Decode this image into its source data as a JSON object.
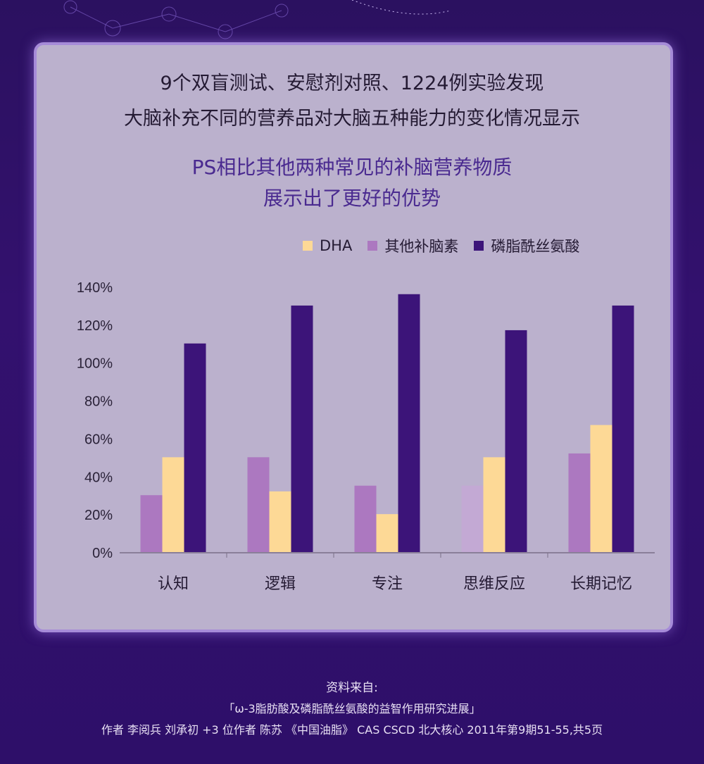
{
  "title_lines": [
    "9个双盲测试、安慰剂对照、1224例实验发现",
    "大脑补充不同的营养品对大脑五种能力的变化情况显示"
  ],
  "subtitle_lines": [
    "PS相比其他两种常见的补脑营养物质",
    "展示出了更好的优势"
  ],
  "chart_data": {
    "type": "bar",
    "categories": [
      "认知",
      "逻辑",
      "专注",
      "思维反应",
      "长期记忆"
    ],
    "series": [
      {
        "name": "其他补脑素",
        "color": "#ac78c0",
        "values": [
          30,
          50,
          35,
          35,
          52
        ]
      },
      {
        "name": "DHA",
        "color": "#fdd996",
        "values": [
          50,
          32,
          20,
          50,
          67
        ]
      },
      {
        "name": "磷脂酰丝氨酸",
        "color": "#3c1479",
        "values": [
          110,
          130,
          136,
          117,
          130
        ]
      }
    ],
    "legend_order": [
      "DHA",
      "其他补脑素",
      "磷脂酰丝氨酸"
    ],
    "legend_position": "top-right",
    "yticks": [
      "0%",
      "20%",
      "40%",
      "60%",
      "80%",
      "100%",
      "120%",
      "140%"
    ],
    "ylim": [
      0,
      140
    ],
    "grid": false
  },
  "footer": {
    "source_label": "资料来自:",
    "paper": "「ω-3脂肪酸及磷脂酰丝氨酸的益智作用研究进展」",
    "citation": "作者 李阅兵 刘承初 +3 位作者 陈苏 《中国油脂》 CAS CSCD 北大核心 2011年第9期51-55,共5页"
  }
}
